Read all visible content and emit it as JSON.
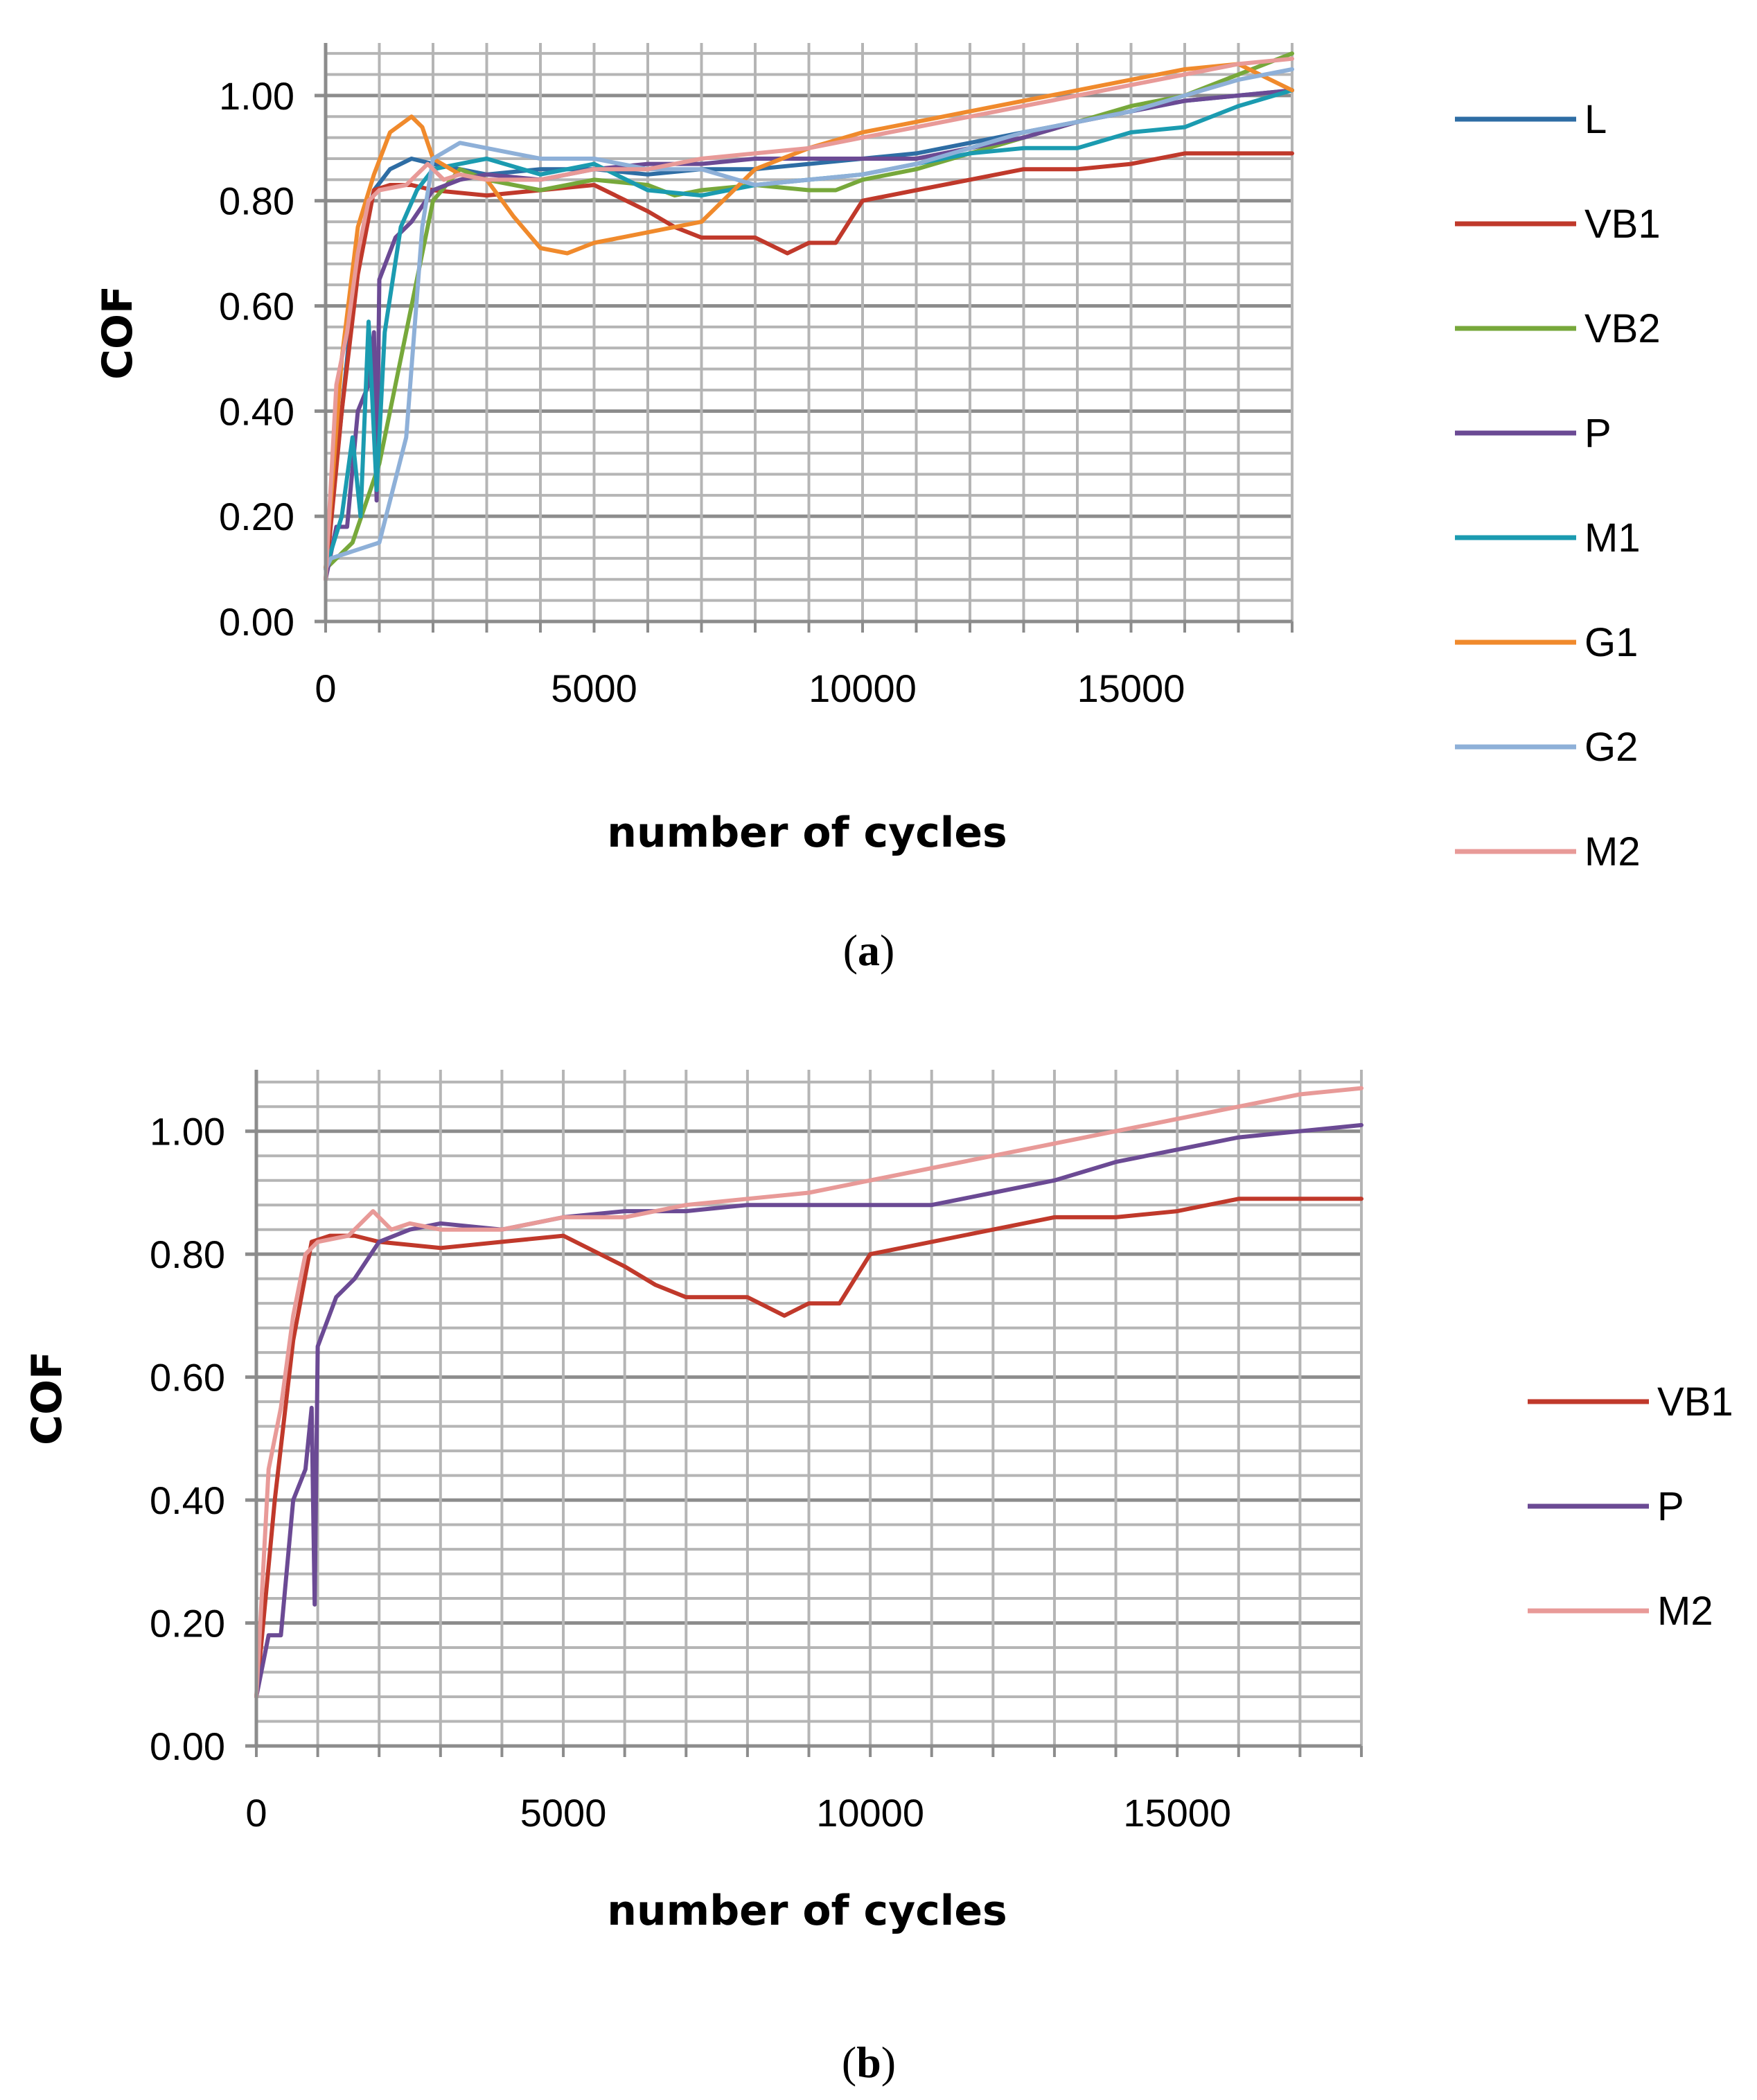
{
  "chart_data": [
    {
      "panel": "(a)",
      "panel_letter": "a",
      "type": "line",
      "xlabel": "number of cycles",
      "ylabel": "COF",
      "xlim": [
        0,
        18000
      ],
      "ylim": [
        0,
        1.1
      ],
      "xticks": [
        0,
        5000,
        10000,
        15000
      ],
      "yticks": [
        0.0,
        0.2,
        0.4,
        0.6,
        0.8,
        1.0
      ],
      "ytick_labels": [
        "0.00",
        "0.20",
        "0.40",
        "0.60",
        "0.80",
        "1.00"
      ],
      "xtick_labels": [
        "0",
        "5000",
        "10000",
        "15000"
      ],
      "legend_position": "right",
      "series": [
        {
          "name": "L",
          "color": "#2e6da4",
          "x": [
            0,
            300,
            600,
            900,
            1200,
            1600,
            2000,
            3000,
            4000,
            5000,
            6000,
            7000,
            8000,
            9000,
            10000,
            11000,
            12000,
            13000,
            14000,
            15000,
            16000,
            17000,
            18000
          ],
          "y": [
            0.1,
            0.4,
            0.7,
            0.82,
            0.86,
            0.88,
            0.87,
            0.85,
            0.86,
            0.86,
            0.85,
            0.86,
            0.86,
            0.87,
            0.88,
            0.89,
            0.91,
            0.93,
            0.95,
            0.97,
            0.99,
            1.0,
            1.01
          ]
        },
        {
          "name": "VB1",
          "color": "#c0392b",
          "x": [
            0,
            300,
            600,
            900,
            1200,
            1600,
            2000,
            3000,
            4000,
            5000,
            6000,
            6500,
            7000,
            8000,
            8600,
            9000,
            9500,
            10000,
            11000,
            12000,
            13000,
            14000,
            15000,
            16000,
            17000,
            18000
          ],
          "y": [
            0.08,
            0.4,
            0.66,
            0.82,
            0.83,
            0.83,
            0.82,
            0.81,
            0.82,
            0.83,
            0.78,
            0.75,
            0.73,
            0.73,
            0.7,
            0.72,
            0.72,
            0.8,
            0.82,
            0.84,
            0.86,
            0.86,
            0.87,
            0.89,
            0.89,
            0.89
          ]
        },
        {
          "name": "VB2",
          "color": "#77a83b",
          "x": [
            0,
            500,
            1000,
            1300,
            1600,
            2000,
            2500,
            3000,
            4000,
            5000,
            6000,
            6500,
            7000,
            8000,
            9000,
            9500,
            10000,
            11000,
            12000,
            13000,
            14000,
            15000,
            16000,
            17000,
            18000
          ],
          "y": [
            0.1,
            0.15,
            0.3,
            0.45,
            0.6,
            0.8,
            0.86,
            0.84,
            0.82,
            0.84,
            0.83,
            0.81,
            0.82,
            0.83,
            0.82,
            0.82,
            0.84,
            0.86,
            0.89,
            0.92,
            0.95,
            0.98,
            1.0,
            1.04,
            1.08
          ]
        },
        {
          "name": "P",
          "color": "#6b4a94",
          "x": [
            0,
            200,
            400,
            600,
            800,
            900,
            950,
            1000,
            1300,
            1600,
            2000,
            2500,
            3000,
            4000,
            5000,
            6000,
            7000,
            8000,
            9000,
            10000,
            11000,
            12000,
            13000,
            14000,
            15000,
            16000,
            17000,
            18000
          ],
          "y": [
            0.08,
            0.18,
            0.18,
            0.4,
            0.45,
            0.55,
            0.23,
            0.65,
            0.73,
            0.76,
            0.82,
            0.84,
            0.85,
            0.84,
            0.86,
            0.87,
            0.87,
            0.88,
            0.88,
            0.88,
            0.88,
            0.9,
            0.92,
            0.95,
            0.97,
            0.99,
            1.0,
            1.01
          ]
        },
        {
          "name": "M1",
          "color": "#1b9bb0",
          "x": [
            0,
            300,
            500,
            650,
            800,
            950,
            1100,
            1400,
            1700,
            2000,
            3000,
            4000,
            5000,
            6000,
            7000,
            8000,
            9000,
            10000,
            11000,
            12000,
            13000,
            14000,
            15000,
            16000,
            17000,
            18000
          ],
          "y": [
            0.1,
            0.2,
            0.35,
            0.2,
            0.57,
            0.25,
            0.55,
            0.75,
            0.82,
            0.86,
            0.88,
            0.85,
            0.87,
            0.82,
            0.81,
            0.83,
            0.84,
            0.85,
            0.87,
            0.89,
            0.9,
            0.9,
            0.93,
            0.94,
            0.98,
            1.01
          ]
        },
        {
          "name": "G1",
          "color": "#f08a2c",
          "x": [
            0,
            300,
            600,
            900,
            1200,
            1600,
            1800,
            2000,
            2500,
            3000,
            3500,
            4000,
            4500,
            5000,
            5500,
            6000,
            7000,
            8000,
            9000,
            10000,
            11000,
            12000,
            13000,
            14000,
            15000,
            16000,
            17000,
            18000
          ],
          "y": [
            0.1,
            0.5,
            0.75,
            0.85,
            0.93,
            0.96,
            0.94,
            0.88,
            0.85,
            0.84,
            0.77,
            0.71,
            0.7,
            0.72,
            0.73,
            0.74,
            0.76,
            0.86,
            0.9,
            0.93,
            0.95,
            0.97,
            0.99,
            1.01,
            1.03,
            1.05,
            1.06,
            1.01
          ]
        },
        {
          "name": "G2",
          "color": "#8eb0d8",
          "x": [
            0,
            100,
            1000,
            1500,
            1800,
            2000,
            2500,
            3000,
            4000,
            5000,
            6000,
            7000,
            8000,
            9000,
            10000,
            11000,
            12000,
            13000,
            14000,
            15000,
            16000,
            17000,
            18000
          ],
          "y": [
            0.1,
            0.12,
            0.15,
            0.35,
            0.75,
            0.88,
            0.91,
            0.9,
            0.88,
            0.88,
            0.86,
            0.86,
            0.83,
            0.84,
            0.85,
            0.87,
            0.9,
            0.93,
            0.95,
            0.97,
            1.0,
            1.03,
            1.05
          ]
        },
        {
          "name": "M2",
          "color": "#e89a98",
          "x": [
            0,
            200,
            400,
            600,
            800,
            1000,
            1500,
            1900,
            2200,
            2500,
            3000,
            4000,
            5000,
            6000,
            7000,
            8000,
            9000,
            10000,
            11000,
            12000,
            13000,
            14000,
            15000,
            16000,
            17000,
            18000
          ],
          "y": [
            0.08,
            0.45,
            0.55,
            0.7,
            0.8,
            0.82,
            0.83,
            0.87,
            0.84,
            0.85,
            0.84,
            0.84,
            0.86,
            0.86,
            0.88,
            0.89,
            0.9,
            0.92,
            0.94,
            0.96,
            0.98,
            1.0,
            1.02,
            1.04,
            1.06,
            1.07
          ]
        }
      ]
    },
    {
      "panel": "(b)",
      "panel_letter": "b",
      "type": "line",
      "xlabel": "number of cycles",
      "ylabel": "COF",
      "xlim": [
        0,
        18000
      ],
      "ylim": [
        0,
        1.1
      ],
      "xticks": [
        0,
        5000,
        10000,
        15000
      ],
      "yticks": [
        0.0,
        0.2,
        0.4,
        0.6,
        0.8,
        1.0
      ],
      "ytick_labels": [
        "0.00",
        "0.20",
        "0.40",
        "0.60",
        "0.80",
        "1.00"
      ],
      "xtick_labels": [
        "0",
        "5000",
        "10000",
        "15000"
      ],
      "legend_position": "right",
      "series": [
        {
          "name": "VB1",
          "color": "#c0392b",
          "x": [
            0,
            300,
            600,
            900,
            1200,
            1600,
            2000,
            3000,
            4000,
            5000,
            6000,
            6500,
            7000,
            8000,
            8600,
            9000,
            9500,
            10000,
            11000,
            12000,
            13000,
            14000,
            15000,
            16000,
            17000,
            18000
          ],
          "y": [
            0.08,
            0.4,
            0.66,
            0.82,
            0.83,
            0.83,
            0.82,
            0.81,
            0.82,
            0.83,
            0.78,
            0.75,
            0.73,
            0.73,
            0.7,
            0.72,
            0.72,
            0.8,
            0.82,
            0.84,
            0.86,
            0.86,
            0.87,
            0.89,
            0.89,
            0.89
          ]
        },
        {
          "name": "P",
          "color": "#6b4a94",
          "x": [
            0,
            200,
            400,
            600,
            800,
            900,
            950,
            1000,
            1300,
            1600,
            2000,
            2500,
            3000,
            4000,
            5000,
            6000,
            7000,
            8000,
            9000,
            10000,
            11000,
            12000,
            13000,
            14000,
            15000,
            16000,
            17000,
            18000
          ],
          "y": [
            0.08,
            0.18,
            0.18,
            0.4,
            0.45,
            0.55,
            0.23,
            0.65,
            0.73,
            0.76,
            0.82,
            0.84,
            0.85,
            0.84,
            0.86,
            0.87,
            0.87,
            0.88,
            0.88,
            0.88,
            0.88,
            0.9,
            0.92,
            0.95,
            0.97,
            0.99,
            1.0,
            1.01
          ]
        },
        {
          "name": "M2",
          "color": "#e89a98",
          "x": [
            0,
            200,
            400,
            600,
            800,
            1000,
            1500,
            1900,
            2200,
            2500,
            3000,
            4000,
            5000,
            6000,
            7000,
            8000,
            9000,
            10000,
            11000,
            12000,
            13000,
            14000,
            15000,
            16000,
            17000,
            18000
          ],
          "y": [
            0.08,
            0.45,
            0.55,
            0.7,
            0.8,
            0.82,
            0.83,
            0.87,
            0.84,
            0.85,
            0.84,
            0.84,
            0.86,
            0.86,
            0.88,
            0.89,
            0.9,
            0.92,
            0.94,
            0.96,
            0.98,
            1.0,
            1.02,
            1.04,
            1.06,
            1.07
          ]
        }
      ]
    }
  ]
}
